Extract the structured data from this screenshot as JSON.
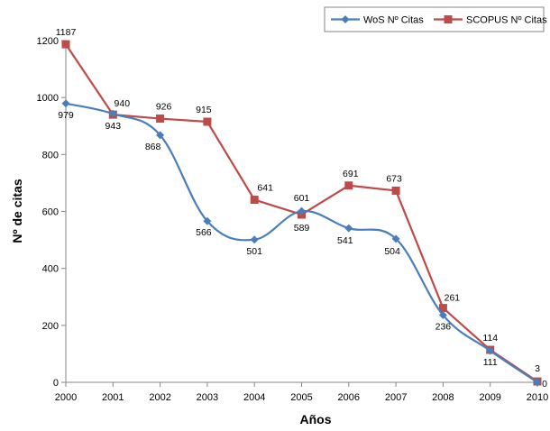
{
  "chart_data": {
    "type": "line",
    "x": [
      "2000",
      "2001",
      "2002",
      "2003",
      "2004",
      "2005",
      "2006",
      "2007",
      "2008",
      "2009",
      "2010"
    ],
    "series": [
      {
        "name": "WoS Nº Citas",
        "values": [
          979,
          943,
          868,
          566,
          501,
          601,
          541,
          504,
          236,
          111,
          0
        ],
        "labels": [
          "979",
          "943",
          "868",
          "566",
          "501",
          "601",
          "541",
          "504",
          "236",
          "111",
          "0"
        ],
        "color": "#4a7ebb",
        "marker": "diamond",
        "smooth": true
      },
      {
        "name": "SCOPUS Nº Citas",
        "values": [
          1187,
          940,
          926,
          915,
          641,
          589,
          691,
          673,
          261,
          114,
          3
        ],
        "labels": [
          "1187",
          "940",
          "926",
          "915",
          "641",
          "589",
          "691",
          "673",
          "261",
          "114",
          "3"
        ],
        "color": "#be4b48",
        "marker": "square",
        "smooth": false
      }
    ],
    "xlabel": "Años",
    "ylabel": "Nº de citas",
    "ylim": [
      0,
      1200
    ],
    "yticks": [
      "0",
      "200",
      "400",
      "600",
      "800",
      "1000",
      "1200"
    ],
    "grid": false,
    "legend": "top-right"
  }
}
